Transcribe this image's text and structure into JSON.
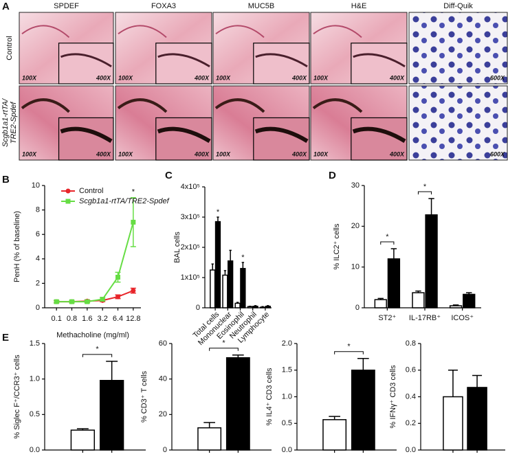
{
  "histology": {
    "label": "A",
    "columns": [
      "SPDEF",
      "FOXA3",
      "MUC5B",
      "H&E",
      "Diff-Quik"
    ],
    "rows": [
      [
        "Control"
      ],
      [
        "Scgb1a1-rtTA/",
        "TRE2-Spdef"
      ]
    ],
    "images": [
      [
        {
          "low": "100X",
          "high": "400X"
        },
        {
          "low": "100X",
          "high": "400X"
        },
        {
          "low": "100X",
          "high": "400X"
        },
        {
          "low": "100X",
          "high": "400X"
        },
        {
          "high": "600X"
        }
      ],
      [
        {
          "low": "100X",
          "high": "400X"
        },
        {
          "low": "100X",
          "high": "400X"
        },
        {
          "low": "100X",
          "high": "400X"
        },
        {
          "low": "100X",
          "high": "400X"
        },
        {
          "high": "600X"
        }
      ]
    ]
  },
  "chart_data": [
    {
      "type": "line",
      "label": "B",
      "ylabel": "PenH (% of baseline)",
      "xlabel": "Methacholine (mg/ml)",
      "categories": [
        "0.1",
        "0.8",
        "1.6",
        "3.2",
        "6.4",
        "12.8"
      ],
      "ylim": [
        0,
        10
      ],
      "yticks": [
        0,
        2,
        4,
        6,
        8,
        10
      ],
      "legend": "top-right",
      "series": [
        {
          "name": "Control",
          "color": "#e8252a",
          "marker": "circle",
          "values": [
            0.5,
            0.5,
            0.55,
            0.6,
            0.9,
            1.4
          ],
          "errors": [
            0.1,
            0.1,
            0.1,
            0.1,
            0.15,
            0.2
          ]
        },
        {
          "name": "Scgb1a1-rtTA/TRE2-Spdef",
          "color": "#66dd44",
          "marker": "square",
          "values": [
            0.5,
            0.5,
            0.5,
            0.7,
            2.5,
            7.0
          ],
          "errors": [
            0.1,
            0.1,
            0.1,
            0.15,
            0.4,
            2.0
          ]
        }
      ],
      "annotations": [
        {
          "text": "*",
          "category": "12.8"
        }
      ]
    },
    {
      "type": "bar",
      "label": "C",
      "ylabel": "BAL cells",
      "categories": [
        "Total cells",
        "Mononuclear",
        "Eosinophil",
        "Neutrophil",
        "Lymphocyte"
      ],
      "ylim": [
        0,
        400000
      ],
      "yticks": [
        0,
        {
          "value": 100000,
          "label": "1x10⁵"
        },
        {
          "value": 200000,
          "label": "2x10⁵"
        },
        {
          "value": 300000,
          "label": "3x10⁵"
        },
        {
          "value": 400000,
          "label": "4x10⁵"
        }
      ],
      "series": [
        {
          "color": "#ffffff",
          "values": [
            125000,
            108000,
            15000,
            4000,
            2000
          ],
          "errors": [
            20000,
            15000,
            3000,
            1000,
            2000
          ]
        },
        {
          "color": "#000000",
          "values": [
            285000,
            155000,
            130000,
            5000,
            5000
          ],
          "errors": [
            15000,
            35000,
            20000,
            2000,
            2000
          ]
        }
      ],
      "annotations": [
        {
          "text": "*",
          "category": "Total cells"
        },
        {
          "text": "*",
          "category": "Eosinophil"
        }
      ]
    },
    {
      "type": "bar",
      "label": "D",
      "ylabel": "% ILC2⁺ cells",
      "categories": [
        "ST2⁺",
        "IL-17RB⁺",
        "ICOS⁺"
      ],
      "ylim": [
        0,
        30
      ],
      "yticks": [
        0,
        10,
        20,
        30
      ],
      "series": [
        {
          "color": "#ffffff",
          "values": [
            2,
            3.7,
            0.5
          ],
          "errors": [
            0.3,
            0.4,
            0.2
          ]
        },
        {
          "color": "#000000",
          "values": [
            12,
            22.8,
            3.3
          ],
          "errors": [
            2.5,
            4,
            0.4
          ]
        }
      ],
      "annotations": [
        {
          "text": "*",
          "category": "ST2⁺",
          "bracket": true
        },
        {
          "text": "*",
          "category": "IL-17RB⁺",
          "bracket": true
        }
      ]
    },
    {
      "type": "bar",
      "label": "E",
      "ylabel": "% Siglec F⁺/CCR3⁺ cells",
      "ylim": [
        0,
        1.5
      ],
      "yticks": [
        {
          "value": 0,
          "label": "0.0"
        },
        0.5,
        {
          "value": 1,
          "label": "1.0"
        },
        1.5
      ],
      "series": [
        {
          "color": "#ffffff",
          "values": [
            0.28
          ],
          "errors": [
            0.02
          ]
        },
        {
          "color": "#000000",
          "values": [
            0.98
          ],
          "errors": [
            0.27
          ]
        }
      ],
      "annotations": [
        {
          "text": "*",
          "bracket": true
        }
      ]
    },
    {
      "type": "bar",
      "ylabel": "% CD3⁺ T cells",
      "ylim": [
        0,
        60
      ],
      "yticks": [
        0,
        20,
        40,
        60
      ],
      "series": [
        {
          "color": "#ffffff",
          "values": [
            12.5
          ],
          "errors": [
            3
          ]
        },
        {
          "color": "#000000",
          "values": [
            52
          ],
          "errors": [
            1.5
          ]
        }
      ],
      "annotations": [
        {
          "text": "*",
          "bracket": true
        }
      ]
    },
    {
      "type": "bar",
      "ylabel": "% IL4⁺ CD3 cells",
      "ylim": [
        0,
        2
      ],
      "yticks": [
        {
          "value": 0,
          "label": "0.0"
        },
        0.5,
        {
          "value": 1,
          "label": "1.0"
        },
        1.5,
        {
          "value": 2,
          "label": "2.0"
        }
      ],
      "series": [
        {
          "color": "#ffffff",
          "values": [
            0.57
          ],
          "errors": [
            0.06
          ]
        },
        {
          "color": "#000000",
          "values": [
            1.5
          ],
          "errors": [
            0.22
          ]
        }
      ],
      "annotations": [
        {
          "text": "*",
          "bracket": true
        }
      ]
    },
    {
      "type": "bar",
      "ylabel": "% IFNγ⁺ CD3 cells",
      "ylim": [
        0,
        0.8
      ],
      "yticks": [
        {
          "value": 0,
          "label": "0.0"
        },
        0.2,
        0.4,
        0.6,
        0.8
      ],
      "series": [
        {
          "color": "#ffffff",
          "values": [
            0.4
          ],
          "errors": [
            0.2
          ]
        },
        {
          "color": "#000000",
          "values": [
            0.47
          ],
          "errors": [
            0.09
          ]
        }
      ],
      "annotations": []
    }
  ]
}
